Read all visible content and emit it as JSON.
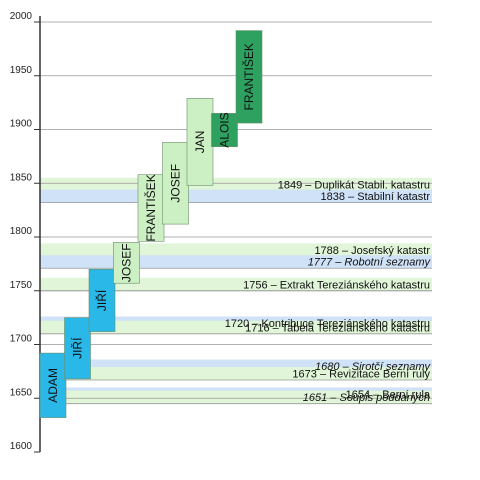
{
  "timeline": {
    "axis": {
      "min": 1600,
      "max": 2000,
      "ticks": [
        1600,
        1650,
        1700,
        1750,
        1800,
        1850,
        1900,
        1950,
        2000
      ]
    },
    "colors": {
      "green_band": "#e1f5d8",
      "blue_band": "#cfe2f7",
      "axis": "#333333",
      "gridline": "#999999"
    },
    "records": [
      {
        "year": 1849,
        "text": "1849 – Duplikát Stabil. katastru",
        "italic": false,
        "band": "green"
      },
      {
        "year": 1838,
        "text": "1838 – Stabilní katastr",
        "italic": false,
        "band": "blue"
      },
      {
        "year": 1788,
        "text": "1788 – Josefský katastr",
        "italic": false,
        "band": "green"
      },
      {
        "year": 1777,
        "text": "1777 – Robotní seznamy",
        "italic": true,
        "band": "blue"
      },
      {
        "year": 1756,
        "text": "1756 – Extrakt Tereziánského katastru",
        "italic": false,
        "band": "green"
      },
      {
        "year": 1720,
        "text": "1720 – Kontribuce Tereziánského katastru",
        "italic": false,
        "band": "blue"
      },
      {
        "year": 1716,
        "text": "1716 – Tabela Tereziánského katastru",
        "italic": false,
        "band": "green"
      },
      {
        "year": 1680,
        "text": "1680 – Sirotčí seznamy",
        "italic": true,
        "band": "blue"
      },
      {
        "year": 1673,
        "text": "1673 – Revizitace Berní ruly",
        "italic": false,
        "band": "green"
      },
      {
        "year": 1654,
        "text": "1654 – Berní rula",
        "italic": false,
        "band": "blue"
      },
      {
        "year": 1651,
        "text": "1651 – Soupis poddaných",
        "italic": true,
        "band": "green"
      }
    ],
    "generations": [
      {
        "name": "ADAM",
        "from": 1632,
        "to": 1692,
        "color": "#29b8e8"
      },
      {
        "name": "JIŘÍ",
        "from": 1668,
        "to": 1725,
        "color": "#29b8e8"
      },
      {
        "name": "JIŘÍ",
        "from": 1712,
        "to": 1770,
        "color": "#29b8e8"
      },
      {
        "name": "JOSEF",
        "from": 1757,
        "to": 1795,
        "color": "#ccefc4"
      },
      {
        "name": "FRANTIŠEK",
        "from": 1796,
        "to": 1858,
        "color": "#ccefc4"
      },
      {
        "name": "JOSEF",
        "from": 1812,
        "to": 1888,
        "color": "#ccefc4"
      },
      {
        "name": "JAN",
        "from": 1848,
        "to": 1929,
        "color": "#ccefc4"
      },
      {
        "name": "ALOIS",
        "from": 1884,
        "to": 1915,
        "color": "#2ea05f"
      },
      {
        "name": "FRANTIŠEK",
        "from": 1906,
        "to": 1992,
        "color": "#2ea05f"
      }
    ]
  }
}
